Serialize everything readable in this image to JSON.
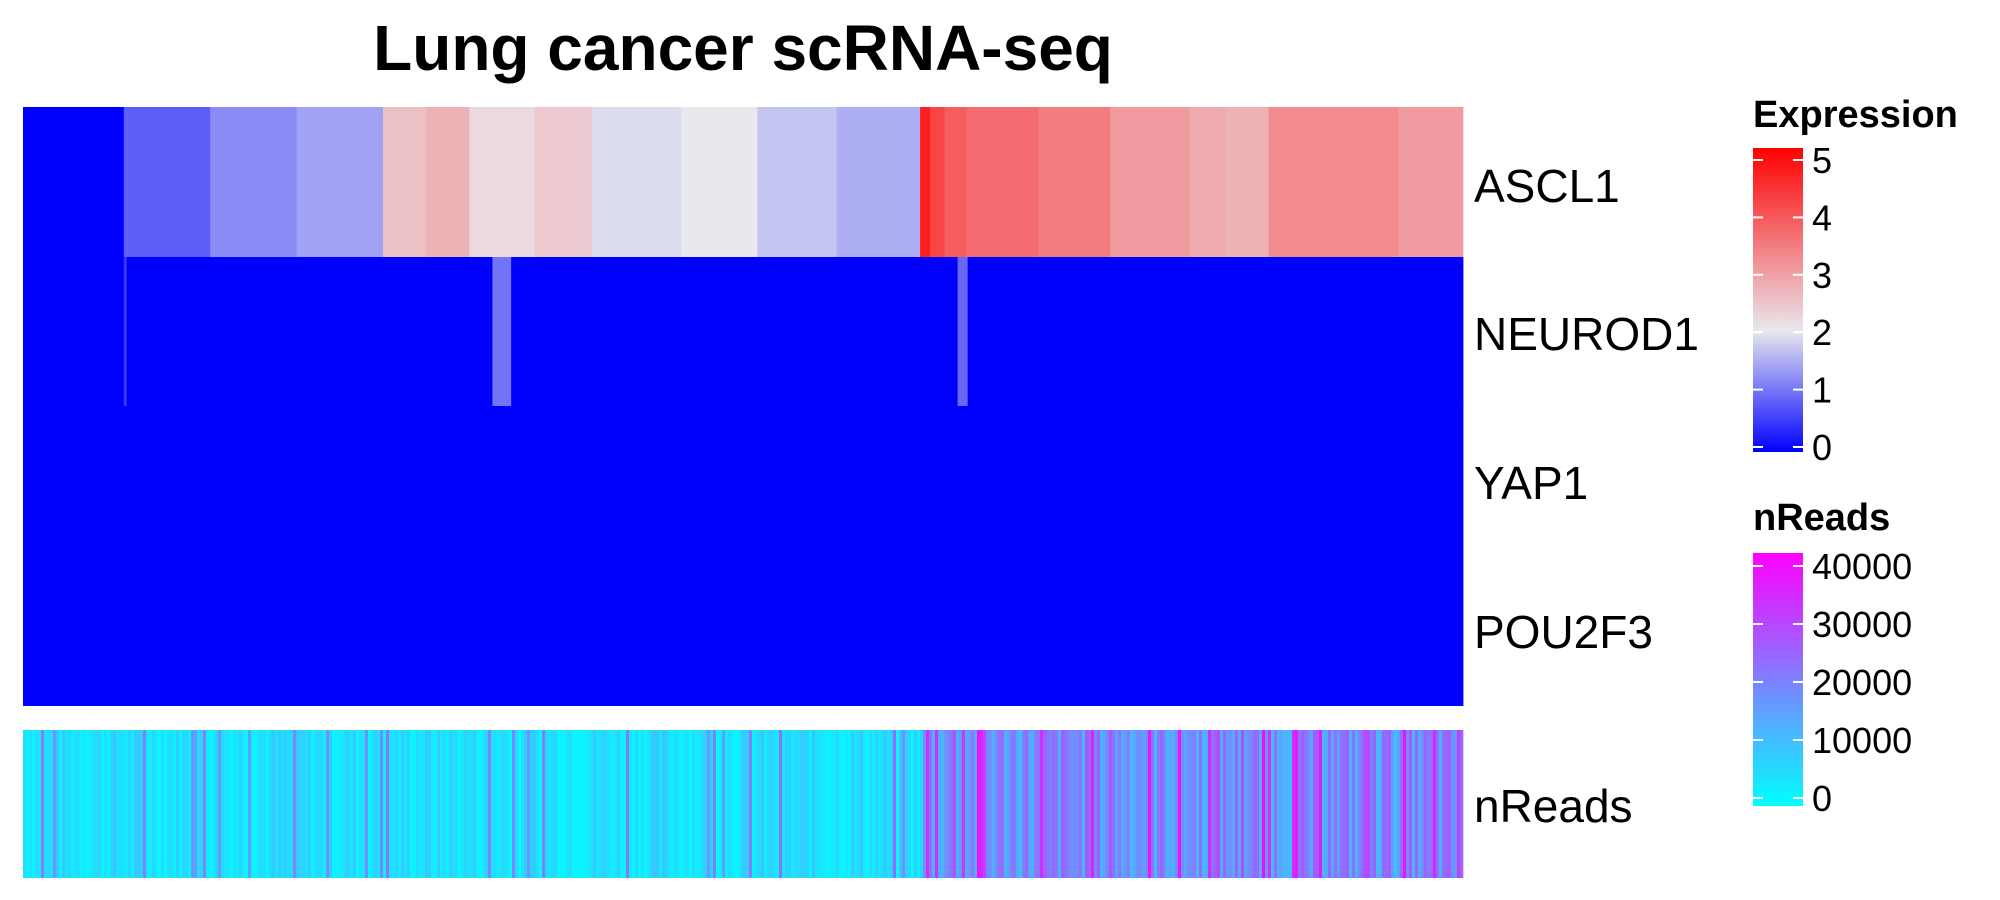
{
  "chart_data": {
    "type": "heatmap",
    "title": "Lung cancer scRNA-seq",
    "rows": [
      "ASCL1",
      "NEUROD1",
      "YAP1",
      "POU2F3"
    ],
    "annotation_row": "nReads",
    "cells": 100,
    "expression_segments": {
      "ASCL1": [
        {
          "from": 0,
          "to": 7,
          "value": 0
        },
        {
          "from": 7,
          "to": 13,
          "value": 0.8
        },
        {
          "from": 13,
          "to": 19,
          "value": 1.2
        },
        {
          "from": 19,
          "to": 25,
          "value": 1.4
        },
        {
          "from": 25,
          "to": 28,
          "value": 2.5
        },
        {
          "from": 28,
          "to": 31,
          "value": 2.7
        },
        {
          "from": 31,
          "to": 35.5,
          "value": 2.2
        },
        {
          "from": 35.5,
          "to": 39.5,
          "value": 2.4
        },
        {
          "from": 39.5,
          "to": 45.7,
          "value": 1.9
        },
        {
          "from": 45.7,
          "to": 51,
          "value": 2.0
        },
        {
          "from": 51,
          "to": 56.5,
          "value": 1.7
        },
        {
          "from": 56.5,
          "to": 62.3,
          "value": 1.5
        },
        {
          "from": 62.3,
          "to": 63,
          "value": 4.6
        },
        {
          "from": 63,
          "to": 64,
          "value": 4.1
        },
        {
          "from": 64,
          "to": 65.5,
          "value": 3.8
        },
        {
          "from": 65.5,
          "to": 70.5,
          "value": 3.6
        },
        {
          "from": 70.5,
          "to": 75.5,
          "value": 3.4
        },
        {
          "from": 75.5,
          "to": 81,
          "value": 3.0
        },
        {
          "from": 81,
          "to": 83.5,
          "value": 2.8
        },
        {
          "from": 83.5,
          "to": 86.5,
          "value": 2.7
        },
        {
          "from": 86.5,
          "to": 95.5,
          "value": 3.2
        },
        {
          "from": 95.5,
          "to": 100,
          "value": 3.0
        }
      ],
      "NEUROD1": [
        {
          "from": 0,
          "to": 7,
          "value": 0
        },
        {
          "from": 7,
          "to": 7.2,
          "value": 0.5
        },
        {
          "from": 7.2,
          "to": 32.6,
          "value": 0
        },
        {
          "from": 32.6,
          "to": 33.9,
          "value": 1.0
        },
        {
          "from": 33.9,
          "to": 64.9,
          "value": 0
        },
        {
          "from": 64.9,
          "to": 65.6,
          "value": 0.9
        },
        {
          "from": 65.6,
          "to": 100,
          "value": 0
        }
      ],
      "YAP1": [
        {
          "from": 0,
          "to": 100,
          "value": 0
        }
      ],
      "POU2F3": [
        {
          "from": 0,
          "to": 100,
          "value": 0
        }
      ]
    },
    "nreads_pattern": {
      "left_segment_end": 62.3,
      "left_mean": 5000,
      "right_mean": 18000
    },
    "legends": [
      {
        "title": "Expression",
        "ticks": [
          0,
          1,
          2,
          3,
          4,
          5
        ],
        "colors": [
          "#0000ff",
          "#e8e8ee",
          "#ff0000"
        ]
      },
      {
        "title": "nReads",
        "ticks": [
          0,
          10000,
          20000,
          30000,
          40000
        ],
        "colors": [
          "#00ffff",
          "#ff00ff"
        ]
      }
    ],
    "legend_placement": "right"
  }
}
